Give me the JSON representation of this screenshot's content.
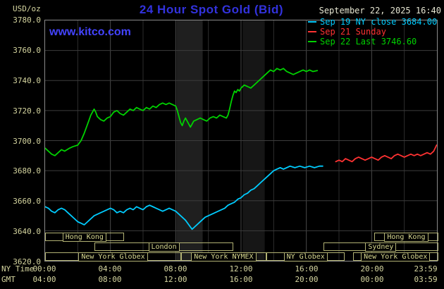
{
  "header": {
    "units_label": "USD/oz",
    "title": "24 Hour Spot Gold (Bid)",
    "datetime": "September 22, 2025 16:40",
    "watermark": "www.kitco.com"
  },
  "legend": [
    {
      "label": "Sep 19 NY close 3684.00",
      "color": "#00ccff"
    },
    {
      "label": "Sep 21 Sunday",
      "color": "#ff3232"
    },
    {
      "label": "Sep 22 Last 3746.60",
      "color": "#00d200"
    }
  ],
  "axes": {
    "y_ticks": [
      "3780.0",
      "3760.0",
      "3740.0",
      "3720.0",
      "3700.0",
      "3680.0",
      "3660.0",
      "3640.0",
      "3620.0"
    ],
    "tick_hours": [
      0,
      4,
      8,
      12,
      16,
      20,
      23.983
    ],
    "rows": [
      {
        "label": "NY Time",
        "ticks": [
          "00:00",
          "04:00",
          "08:00",
          "12:00",
          "16:00",
          "20:00",
          "23:59"
        ]
      },
      {
        "label": "GMT",
        "ticks": [
          "04:00",
          "08:00",
          "12:00",
          "16:00",
          "20:00",
          "00:00",
          "03:59"
        ]
      }
    ]
  },
  "chart_data": {
    "type": "line",
    "title": "24 Hour Spot Gold (Bid)",
    "ylabel": "USD/oz",
    "xlabel": "NY Time (top row) / GMT (bottom row)",
    "xlim": [
      0,
      24
    ],
    "ylim": [
      3620,
      3780
    ],
    "y_gridstep": 20,
    "grid": true,
    "legend_position": "top-right",
    "shaded_bands_hours": [
      {
        "from": 8.05,
        "to": 9.65,
        "color": "#1f1f1f"
      },
      {
        "from": 12.1,
        "to": 13.45,
        "color": "#161616"
      }
    ],
    "series": [
      {
        "name": "Sep 19 NY close",
        "close": 3684.0,
        "color": "#00ccff",
        "points": [
          [
            0,
            3656
          ],
          [
            0.2,
            3655
          ],
          [
            0.4,
            3653
          ],
          [
            0.6,
            3652
          ],
          [
            0.8,
            3654
          ],
          [
            1,
            3655
          ],
          [
            1.2,
            3654
          ],
          [
            1.4,
            3652
          ],
          [
            1.6,
            3650
          ],
          [
            1.8,
            3648
          ],
          [
            2,
            3646
          ],
          [
            2.2,
            3645
          ],
          [
            2.4,
            3644
          ],
          [
            2.6,
            3646
          ],
          [
            2.8,
            3648
          ],
          [
            3,
            3650
          ],
          [
            3.2,
            3651
          ],
          [
            3.4,
            3652
          ],
          [
            3.6,
            3653
          ],
          [
            3.8,
            3654
          ],
          [
            4,
            3655
          ],
          [
            4.2,
            3654
          ],
          [
            4.4,
            3652
          ],
          [
            4.6,
            3653
          ],
          [
            4.8,
            3652
          ],
          [
            5,
            3654
          ],
          [
            5.2,
            3655
          ],
          [
            5.4,
            3654
          ],
          [
            5.6,
            3656
          ],
          [
            5.8,
            3655
          ],
          [
            6,
            3654
          ],
          [
            6.2,
            3656
          ],
          [
            6.4,
            3657
          ],
          [
            6.6,
            3656
          ],
          [
            6.8,
            3655
          ],
          [
            7,
            3654
          ],
          [
            7.2,
            3653
          ],
          [
            7.4,
            3654
          ],
          [
            7.6,
            3655
          ],
          [
            7.8,
            3654
          ],
          [
            8,
            3653
          ],
          [
            8.2,
            3651
          ],
          [
            8.4,
            3649
          ],
          [
            8.6,
            3647
          ],
          [
            8.8,
            3644
          ],
          [
            9,
            3641
          ],
          [
            9.2,
            3643
          ],
          [
            9.4,
            3645
          ],
          [
            9.6,
            3647
          ],
          [
            9.8,
            3649
          ],
          [
            10,
            3650
          ],
          [
            10.2,
            3651
          ],
          [
            10.4,
            3652
          ],
          [
            10.6,
            3653
          ],
          [
            10.8,
            3654
          ],
          [
            11,
            3655
          ],
          [
            11.2,
            3657
          ],
          [
            11.4,
            3658
          ],
          [
            11.6,
            3659
          ],
          [
            11.8,
            3661
          ],
          [
            12,
            3662
          ],
          [
            12.2,
            3664
          ],
          [
            12.4,
            3665
          ],
          [
            12.6,
            3667
          ],
          [
            12.8,
            3668
          ],
          [
            13,
            3670
          ],
          [
            13.2,
            3672
          ],
          [
            13.4,
            3674
          ],
          [
            13.6,
            3676
          ],
          [
            13.8,
            3678
          ],
          [
            14,
            3680
          ],
          [
            14.2,
            3681
          ],
          [
            14.4,
            3682
          ],
          [
            14.6,
            3681
          ],
          [
            14.8,
            3682
          ],
          [
            15,
            3683
          ],
          [
            15.3,
            3682
          ],
          [
            15.6,
            3683
          ],
          [
            15.9,
            3682
          ],
          [
            16.2,
            3683
          ],
          [
            16.5,
            3682
          ],
          [
            16.8,
            3683
          ],
          [
            17,
            3683
          ]
        ]
      },
      {
        "name": "Sep 21 Sunday",
        "color": "#ff3232",
        "points": [
          [
            17.8,
            3686
          ],
          [
            18,
            3687
          ],
          [
            18.2,
            3686
          ],
          [
            18.4,
            3688
          ],
          [
            18.6,
            3687
          ],
          [
            18.8,
            3686
          ],
          [
            19,
            3688
          ],
          [
            19.2,
            3689
          ],
          [
            19.4,
            3688
          ],
          [
            19.6,
            3687
          ],
          [
            19.8,
            3688
          ],
          [
            20,
            3689
          ],
          [
            20.2,
            3688
          ],
          [
            20.4,
            3687
          ],
          [
            20.6,
            3689
          ],
          [
            20.8,
            3690
          ],
          [
            21,
            3689
          ],
          [
            21.2,
            3688
          ],
          [
            21.4,
            3690
          ],
          [
            21.6,
            3691
          ],
          [
            21.8,
            3690
          ],
          [
            22,
            3689
          ],
          [
            22.2,
            3690
          ],
          [
            22.4,
            3691
          ],
          [
            22.6,
            3690
          ],
          [
            22.8,
            3691
          ],
          [
            23,
            3690
          ],
          [
            23.2,
            3691
          ],
          [
            23.4,
            3692
          ],
          [
            23.6,
            3691
          ],
          [
            23.8,
            3693
          ],
          [
            23.98,
            3697
          ]
        ]
      },
      {
        "name": "Sep 22 Last",
        "last": 3746.6,
        "color": "#00d200",
        "points": [
          [
            0,
            3695
          ],
          [
            0.2,
            3693
          ],
          [
            0.4,
            3691
          ],
          [
            0.6,
            3690
          ],
          [
            0.8,
            3692
          ],
          [
            1,
            3694
          ],
          [
            1.2,
            3693
          ],
          [
            1.5,
            3695
          ],
          [
            1.7,
            3696
          ],
          [
            2,
            3697
          ],
          [
            2.2,
            3700
          ],
          [
            2.4,
            3705
          ],
          [
            2.6,
            3711
          ],
          [
            2.8,
            3717
          ],
          [
            3,
            3721
          ],
          [
            3.1,
            3719
          ],
          [
            3.2,
            3716
          ],
          [
            3.4,
            3714
          ],
          [
            3.6,
            3713
          ],
          [
            3.8,
            3715
          ],
          [
            4,
            3716
          ],
          [
            4.2,
            3719
          ],
          [
            4.4,
            3720
          ],
          [
            4.6,
            3718
          ],
          [
            4.8,
            3717
          ],
          [
            5,
            3719
          ],
          [
            5.2,
            3721
          ],
          [
            5.4,
            3720
          ],
          [
            5.6,
            3722
          ],
          [
            5.8,
            3721
          ],
          [
            6,
            3720
          ],
          [
            6.2,
            3722
          ],
          [
            6.4,
            3721
          ],
          [
            6.6,
            3723
          ],
          [
            6.8,
            3722
          ],
          [
            7,
            3724
          ],
          [
            7.2,
            3725
          ],
          [
            7.4,
            3724
          ],
          [
            7.6,
            3725
          ],
          [
            7.8,
            3724
          ],
          [
            8,
            3723
          ],
          [
            8.1,
            3720
          ],
          [
            8.2,
            3716
          ],
          [
            8.3,
            3712
          ],
          [
            8.4,
            3710
          ],
          [
            8.5,
            3713
          ],
          [
            8.6,
            3715
          ],
          [
            8.7,
            3713
          ],
          [
            8.8,
            3711
          ],
          [
            8.9,
            3709
          ],
          [
            9,
            3711
          ],
          [
            9.1,
            3713
          ],
          [
            9.3,
            3714
          ],
          [
            9.5,
            3715
          ],
          [
            9.7,
            3714
          ],
          [
            9.9,
            3713
          ],
          [
            10.1,
            3715
          ],
          [
            10.3,
            3716
          ],
          [
            10.5,
            3715
          ],
          [
            10.7,
            3717
          ],
          [
            10.9,
            3716
          ],
          [
            11.1,
            3715
          ],
          [
            11.2,
            3717
          ],
          [
            11.3,
            3721
          ],
          [
            11.4,
            3726
          ],
          [
            11.5,
            3730
          ],
          [
            11.6,
            3733
          ],
          [
            11.7,
            3732
          ],
          [
            11.8,
            3734
          ],
          [
            11.9,
            3733
          ],
          [
            12,
            3735
          ],
          [
            12.2,
            3737
          ],
          [
            12.4,
            3736
          ],
          [
            12.6,
            3735
          ],
          [
            12.8,
            3737
          ],
          [
            13,
            3739
          ],
          [
            13.2,
            3741
          ],
          [
            13.4,
            3743
          ],
          [
            13.6,
            3745
          ],
          [
            13.8,
            3747
          ],
          [
            14,
            3746
          ],
          [
            14.2,
            3748
          ],
          [
            14.4,
            3747
          ],
          [
            14.6,
            3748
          ],
          [
            14.8,
            3746
          ],
          [
            15,
            3745
          ],
          [
            15.2,
            3744
          ],
          [
            15.4,
            3745
          ],
          [
            15.6,
            3746
          ],
          [
            15.8,
            3747
          ],
          [
            16,
            3746
          ],
          [
            16.2,
            3747
          ],
          [
            16.4,
            3746
          ],
          [
            16.67,
            3746.6
          ]
        ]
      }
    ],
    "sessions": [
      {
        "row": 0,
        "start": 0,
        "end": 4.8,
        "label": "Hong Kong"
      },
      {
        "row": 0,
        "start": 20.1,
        "end": 23.98,
        "label": "Hong Kong"
      },
      {
        "row": 1,
        "start": 3.0,
        "end": 11.5,
        "label": "London"
      },
      {
        "row": 1,
        "start": 17.0,
        "end": 23.98,
        "label": "Sydney"
      },
      {
        "row": 2,
        "start": 0,
        "end": 8.3,
        "label": "New York Globex"
      },
      {
        "row": 2,
        "start": 8.3,
        "end": 13.5,
        "label": "New York NYMEX"
      },
      {
        "row": 2,
        "start": 13.5,
        "end": 18.3,
        "label": "NY Globex"
      },
      {
        "row": 2,
        "start": 18.8,
        "end": 23.98,
        "label": "New York Globex"
      }
    ]
  }
}
